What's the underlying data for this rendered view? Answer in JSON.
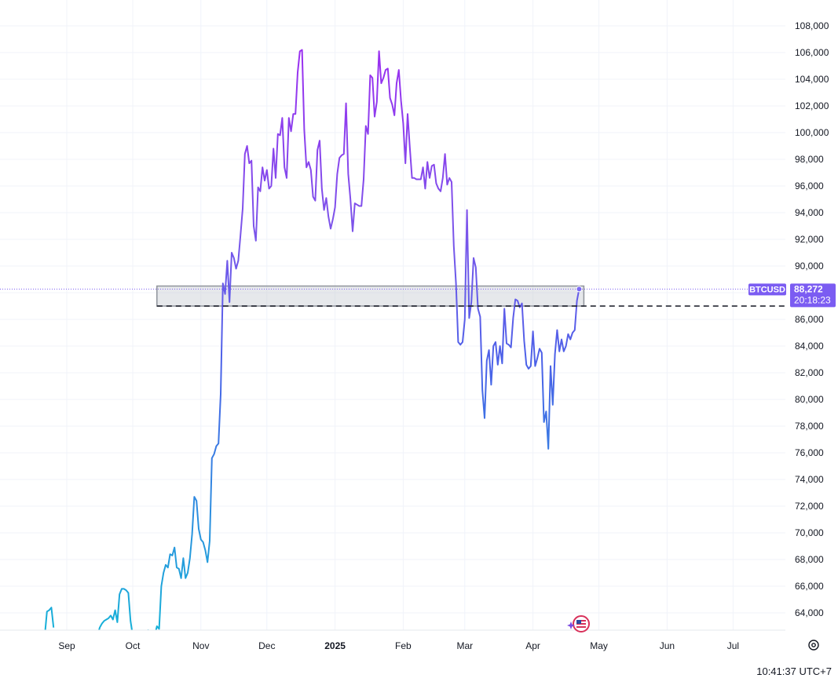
{
  "chart_data": {
    "type": "line",
    "symbol": "BTCUSD",
    "last_price_label": "88,272",
    "countdown": "20:18:23",
    "y_tick_labels": [
      "64,000",
      "66,000",
      "68,000",
      "70,000",
      "72,000",
      "74,000",
      "76,000",
      "78,000",
      "80,000",
      "82,000",
      "84,000",
      "86,000",
      "88,000",
      "90,000",
      "92,000",
      "94,000",
      "96,000",
      "98,000",
      "100,000",
      "102,000",
      "104,000",
      "106,000",
      "108,000"
    ],
    "x_tick_labels": [
      "Sep",
      "Oct",
      "Nov",
      "Dec",
      "2025",
      "Feb",
      "Mar",
      "Apr",
      "May",
      "Jun",
      "Jul"
    ],
    "ylim": [
      62300,
      110000
    ],
    "grid": true,
    "points": [
      [
        "2024-08-22",
        62300
      ],
      [
        "2024-08-23",
        64100
      ],
      [
        "2024-08-24",
        64200
      ],
      [
        "2024-08-25",
        64400
      ],
      [
        "2024-08-26",
        62900
      ],
      [
        "2024-09-15",
        62300
      ],
      [
        "2024-09-16",
        62900
      ],
      [
        "2024-09-17",
        63200
      ],
      [
        "2024-09-18",
        63400
      ],
      [
        "2024-09-19",
        63500
      ],
      [
        "2024-09-20",
        63600
      ],
      [
        "2024-09-21",
        63800
      ],
      [
        "2024-09-22",
        63500
      ],
      [
        "2024-09-23",
        64200
      ],
      [
        "2024-09-24",
        63300
      ],
      [
        "2024-09-25",
        65400
      ],
      [
        "2024-09-26",
        65800
      ],
      [
        "2024-09-27",
        65800
      ],
      [
        "2024-09-28",
        65700
      ],
      [
        "2024-09-29",
        65500
      ],
      [
        "2024-09-30",
        63400
      ],
      [
        "2024-10-01",
        62300
      ],
      [
        "2024-10-07",
        62300
      ],
      [
        "2024-10-08",
        62700
      ],
      [
        "2024-10-11",
        62300
      ],
      [
        "2024-10-12",
        63000
      ],
      [
        "2024-10-13",
        62800
      ],
      [
        "2024-10-14",
        66000
      ],
      [
        "2024-10-15",
        67000
      ],
      [
        "2024-10-16",
        67600
      ],
      [
        "2024-10-17",
        67400
      ],
      [
        "2024-10-18",
        68400
      ],
      [
        "2024-10-19",
        68300
      ],
      [
        "2024-10-20",
        68900
      ],
      [
        "2024-10-21",
        67400
      ],
      [
        "2024-10-22",
        67300
      ],
      [
        "2024-10-23",
        66600
      ],
      [
        "2024-10-24",
        68100
      ],
      [
        "2024-10-25",
        66600
      ],
      [
        "2024-10-26",
        67000
      ],
      [
        "2024-10-27",
        68100
      ],
      [
        "2024-10-28",
        69900
      ],
      [
        "2024-10-29",
        72700
      ],
      [
        "2024-10-30",
        72400
      ],
      [
        "2024-10-31",
        70300
      ],
      [
        "2024-11-01",
        69500
      ],
      [
        "2024-11-02",
        69300
      ],
      [
        "2024-11-03",
        68700
      ],
      [
        "2024-11-04",
        67800
      ],
      [
        "2024-11-05",
        69400
      ],
      [
        "2024-11-06",
        75600
      ],
      [
        "2024-11-07",
        75900
      ],
      [
        "2024-11-08",
        76500
      ],
      [
        "2024-11-09",
        76700
      ],
      [
        "2024-11-10",
        80400
      ],
      [
        "2024-11-11",
        88700
      ],
      [
        "2024-11-12",
        87900
      ],
      [
        "2024-11-13",
        90400
      ],
      [
        "2024-11-14",
        87300
      ],
      [
        "2024-11-15",
        91000
      ],
      [
        "2024-11-16",
        90600
      ],
      [
        "2024-11-17",
        89800
      ],
      [
        "2024-11-18",
        90400
      ],
      [
        "2024-11-19",
        92300
      ],
      [
        "2024-11-20",
        94300
      ],
      [
        "2024-11-21",
        98400
      ],
      [
        "2024-11-22",
        99000
      ],
      [
        "2024-11-23",
        97700
      ],
      [
        "2024-11-24",
        97900
      ],
      [
        "2024-11-25",
        93000
      ],
      [
        "2024-11-26",
        91900
      ],
      [
        "2024-11-27",
        95900
      ],
      [
        "2024-11-28",
        95600
      ],
      [
        "2024-11-29",
        97400
      ],
      [
        "2024-11-30",
        96400
      ],
      [
        "2024-12-01",
        97200
      ],
      [
        "2024-12-02",
        95800
      ],
      [
        "2024-12-03",
        96000
      ],
      [
        "2024-12-04",
        98800
      ],
      [
        "2024-12-05",
        96600
      ],
      [
        "2024-12-06",
        99900
      ],
      [
        "2024-12-07",
        99800
      ],
      [
        "2024-12-08",
        101100
      ],
      [
        "2024-12-09",
        97400
      ],
      [
        "2024-12-10",
        96600
      ],
      [
        "2024-12-11",
        101100
      ],
      [
        "2024-12-12",
        100100
      ],
      [
        "2024-12-13",
        101400
      ],
      [
        "2024-12-14",
        101400
      ],
      [
        "2024-12-15",
        104500
      ],
      [
        "2024-12-16",
        106100
      ],
      [
        "2024-12-17",
        106200
      ],
      [
        "2024-12-18",
        100200
      ],
      [
        "2024-12-19",
        97400
      ],
      [
        "2024-12-20",
        97800
      ],
      [
        "2024-12-21",
        97200
      ],
      [
        "2024-12-22",
        95200
      ],
      [
        "2024-12-23",
        94900
      ],
      [
        "2024-12-24",
        98700
      ],
      [
        "2024-12-25",
        99400
      ],
      [
        "2024-12-26",
        95800
      ],
      [
        "2024-12-27",
        94200
      ],
      [
        "2024-12-28",
        95100
      ],
      [
        "2024-12-29",
        93700
      ],
      [
        "2024-12-30",
        92800
      ],
      [
        "2024-12-31",
        93500
      ],
      [
        "2025-01-01",
        94400
      ],
      [
        "2025-01-02",
        96900
      ],
      [
        "2025-01-03",
        98100
      ],
      [
        "2025-01-04",
        98300
      ],
      [
        "2025-01-05",
        98400
      ],
      [
        "2025-01-06",
        102200
      ],
      [
        "2025-01-07",
        96900
      ],
      [
        "2025-01-08",
        95000
      ],
      [
        "2025-01-09",
        92600
      ],
      [
        "2025-01-10",
        94700
      ],
      [
        "2025-01-11",
        94600
      ],
      [
        "2025-01-12",
        94500
      ],
      [
        "2025-01-13",
        94500
      ],
      [
        "2025-01-14",
        96500
      ],
      [
        "2025-01-15",
        100500
      ],
      [
        "2025-01-16",
        99900
      ],
      [
        "2025-01-17",
        104300
      ],
      [
        "2025-01-18",
        104100
      ],
      [
        "2025-01-19",
        101200
      ],
      [
        "2025-01-20",
        102300
      ],
      [
        "2025-01-21",
        106100
      ],
      [
        "2025-01-22",
        103700
      ],
      [
        "2025-01-23",
        104100
      ],
      [
        "2025-01-24",
        104700
      ],
      [
        "2025-01-25",
        104800
      ],
      [
        "2025-01-26",
        102600
      ],
      [
        "2025-01-27",
        102100
      ],
      [
        "2025-01-28",
        101300
      ],
      [
        "2025-01-29",
        103700
      ],
      [
        "2025-01-30",
        104700
      ],
      [
        "2025-01-31",
        102400
      ],
      [
        "2025-02-01",
        100700
      ],
      [
        "2025-02-02",
        97700
      ],
      [
        "2025-02-03",
        101400
      ],
      [
        "2025-02-04",
        98900
      ],
      [
        "2025-02-05",
        96600
      ],
      [
        "2025-02-06",
        96600
      ],
      [
        "2025-02-07",
        96500
      ],
      [
        "2025-02-08",
        96500
      ],
      [
        "2025-02-09",
        96500
      ],
      [
        "2025-02-10",
        97400
      ],
      [
        "2025-02-11",
        95800
      ],
      [
        "2025-02-12",
        97800
      ],
      [
        "2025-02-13",
        96600
      ],
      [
        "2025-02-14",
        97500
      ],
      [
        "2025-02-15",
        97600
      ],
      [
        "2025-02-16",
        96200
      ],
      [
        "2025-02-17",
        95800
      ],
      [
        "2025-02-18",
        95600
      ],
      [
        "2025-02-19",
        96600
      ],
      [
        "2025-02-20",
        98400
      ],
      [
        "2025-02-21",
        96100
      ],
      [
        "2025-02-22",
        96600
      ],
      [
        "2025-02-23",
        96300
      ],
      [
        "2025-02-24",
        91500
      ],
      [
        "2025-02-25",
        88700
      ],
      [
        "2025-02-26",
        84300
      ],
      [
        "2025-02-27",
        84100
      ],
      [
        "2025-02-28",
        84300
      ],
      [
        "2025-03-01",
        86000
      ],
      [
        "2025-03-02",
        94200
      ],
      [
        "2025-03-03",
        86100
      ],
      [
        "2025-03-04",
        87300
      ],
      [
        "2025-03-05",
        90600
      ],
      [
        "2025-03-06",
        89900
      ],
      [
        "2025-03-07",
        86800
      ],
      [
        "2025-03-08",
        86200
      ],
      [
        "2025-03-09",
        80700
      ],
      [
        "2025-03-10",
        78600
      ],
      [
        "2025-03-11",
        82900
      ],
      [
        "2025-03-12",
        83700
      ],
      [
        "2025-03-13",
        81100
      ],
      [
        "2025-03-14",
        84000
      ],
      [
        "2025-03-15",
        84300
      ],
      [
        "2025-03-16",
        82600
      ],
      [
        "2025-03-17",
        84000
      ],
      [
        "2025-03-18",
        82700
      ],
      [
        "2025-03-19",
        86800
      ],
      [
        "2025-03-20",
        84200
      ],
      [
        "2025-03-21",
        84100
      ],
      [
        "2025-03-22",
        83900
      ],
      [
        "2025-03-23",
        86100
      ],
      [
        "2025-03-24",
        87500
      ],
      [
        "2025-03-25",
        87400
      ],
      [
        "2025-03-26",
        86900
      ],
      [
        "2025-03-27",
        87200
      ],
      [
        "2025-03-28",
        84400
      ],
      [
        "2025-03-29",
        82600
      ],
      [
        "2025-03-30",
        82300
      ],
      [
        "2025-03-31",
        82500
      ],
      [
        "2025-04-01",
        85100
      ],
      [
        "2025-04-02",
        82500
      ],
      [
        "2025-04-03",
        83100
      ],
      [
        "2025-04-04",
        83800
      ],
      [
        "2025-04-05",
        83500
      ],
      [
        "2025-04-06",
        78300
      ],
      [
        "2025-04-07",
        79100
      ],
      [
        "2025-04-08",
        76300
      ],
      [
        "2025-04-09",
        82500
      ],
      [
        "2025-04-10",
        79600
      ],
      [
        "2025-04-11",
        83400
      ],
      [
        "2025-04-12",
        85200
      ],
      [
        "2025-04-13",
        83600
      ],
      [
        "2025-04-14",
        84500
      ],
      [
        "2025-04-15",
        83600
      ],
      [
        "2025-04-16",
        84000
      ],
      [
        "2025-04-17",
        84900
      ],
      [
        "2025-04-18",
        84500
      ],
      [
        "2025-04-19",
        85000
      ],
      [
        "2025-04-20",
        85200
      ],
      [
        "2025-04-21",
        87400
      ],
      [
        "2025-04-22",
        88272
      ]
    ],
    "price_line": 88272,
    "zone": {
      "from": "2024-10-12",
      "to": "2025-04-22",
      "y_low": 87000,
      "y_high": 88500
    },
    "dashed_level": 87000,
    "line_gradient_colors": [
      "#16b0d8",
      "#4a62e8",
      "#9b2ef0"
    ],
    "accent_color": "#7b5cf2"
  },
  "footer": {
    "clock": "10:41:37 UTC+7"
  },
  "icons": {
    "flag_marker": "us-flag-icon",
    "settings": "gear-icon"
  }
}
